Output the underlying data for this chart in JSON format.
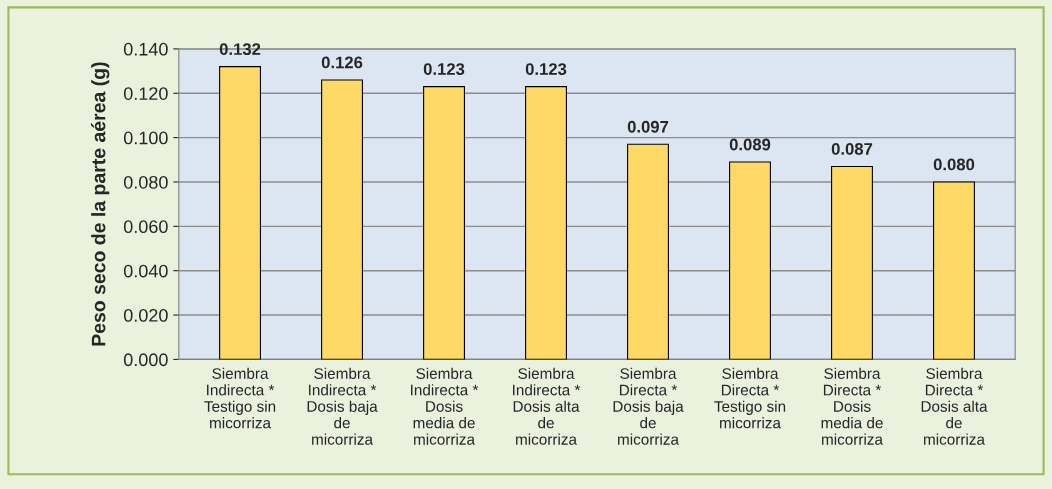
{
  "chart_data": {
    "type": "bar",
    "ylabel": "Peso seco de la parte aérea (g)",
    "categories": [
      "Siembra\nIndirecta *\nTestigo sin\nmicorriza",
      "Siembra\nIndirecta *\nDosis baja\nde\nmicorriza",
      "Siembra\nIndirecta *\nDosis\nmedia de\nmicorriza",
      "Siembra\nIndirecta *\nDosis alta\nde\nmicorriza",
      "Siembra\nDirecta *\nDosis baja\nde\nmicorriza",
      "Siembra\nDirecta *\nTestigo sin\nmicorriza",
      "Siembra\nDirecta *\nDosis\nmedia de\nmicorriza",
      "Siembra\nDirecta *\nDosis alta\nde\nmicorriza"
    ],
    "values": [
      0.132,
      0.126,
      0.123,
      0.123,
      0.097,
      0.089,
      0.087,
      0.08
    ],
    "value_labels": [
      "0.132",
      "0.126",
      "0.123",
      "0.123",
      "0.097",
      "0.089",
      "0.087",
      "0.080"
    ],
    "color": "#ffd966",
    "ylim": [
      0,
      0.14
    ],
    "yticks": [
      {
        "value": 0,
        "label": "0.000"
      },
      {
        "value": 0.02,
        "label": "0.020"
      },
      {
        "value": 0.04,
        "label": "0.040"
      },
      {
        "value": 0.06,
        "label": "0.060"
      },
      {
        "value": 0.08,
        "label": "0.080"
      },
      {
        "value": 0.1,
        "label": "0.100"
      },
      {
        "value": 0.12,
        "label": "0.120"
      },
      {
        "value": 0.14,
        "label": "0.140"
      }
    ],
    "grid": "y"
  }
}
